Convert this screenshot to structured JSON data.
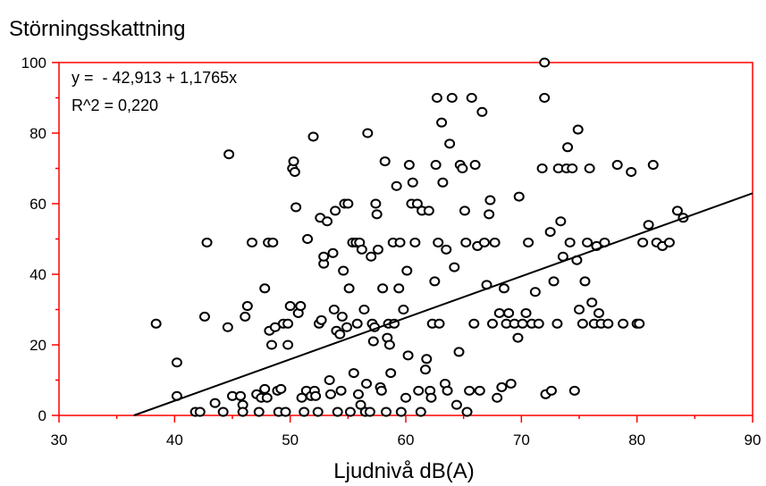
{
  "chart_data": {
    "type": "scatter",
    "title": "Störningsskattning",
    "xlabel": "Ljudnivå dB(A)",
    "ylabel": "",
    "xlim": [
      30,
      90
    ],
    "ylim": [
      0,
      100
    ],
    "xticks": [
      30,
      40,
      50,
      60,
      70,
      80,
      90
    ],
    "yticks": [
      0,
      20,
      40,
      60,
      80,
      100
    ],
    "xtick_labels": [
      "30",
      "40",
      "50",
      "60",
      "70",
      "80",
      "90"
    ],
    "ytick_labels": [
      "0",
      "20",
      "40",
      "60",
      "80",
      "100"
    ],
    "grid": false,
    "frame_color": "#ff0000",
    "marker_color": "#000000",
    "regression": {
      "intercept": -42.913,
      "slope": 1.1765,
      "equation_label": "y =  - 42,913 + 1,1765x",
      "r2_label": "R^2 = 0,220"
    },
    "points": [
      [
        38.4,
        26
      ],
      [
        40.2,
        15
      ],
      [
        40.2,
        5.5
      ],
      [
        41.8,
        1
      ],
      [
        42.2,
        1
      ],
      [
        42.6,
        28
      ],
      [
        42.8,
        49
      ],
      [
        43.5,
        3.5
      ],
      [
        44.2,
        1
      ],
      [
        44.6,
        25
      ],
      [
        44.7,
        74
      ],
      [
        45,
        5.5
      ],
      [
        45.7,
        5.5
      ],
      [
        45.9,
        3
      ],
      [
        45.9,
        1
      ],
      [
        46.1,
        28
      ],
      [
        46.3,
        31
      ],
      [
        46.7,
        49
      ],
      [
        47.1,
        6
      ],
      [
        47.3,
        1
      ],
      [
        47.5,
        5
      ],
      [
        47.8,
        7.5
      ],
      [
        47.8,
        36
      ],
      [
        48,
        5
      ],
      [
        48.1,
        49
      ],
      [
        48.2,
        24
      ],
      [
        48.4,
        20
      ],
      [
        48.5,
        49
      ],
      [
        48.7,
        25
      ],
      [
        48.9,
        7
      ],
      [
        49,
        1
      ],
      [
        49.2,
        7.5
      ],
      [
        49.4,
        26
      ],
      [
        49.6,
        1
      ],
      [
        49.8,
        26
      ],
      [
        49.8,
        20
      ],
      [
        50,
        31
      ],
      [
        50.2,
        70
      ],
      [
        50.3,
        72
      ],
      [
        50.4,
        69
      ],
      [
        50.5,
        59
      ],
      [
        50.7,
        29
      ],
      [
        50.9,
        31
      ],
      [
        51,
        5
      ],
      [
        51.2,
        1
      ],
      [
        51.4,
        7
      ],
      [
        51.5,
        50
      ],
      [
        51.8,
        5.5
      ],
      [
        52,
        79
      ],
      [
        52.1,
        7
      ],
      [
        52.2,
        5.5
      ],
      [
        52.4,
        1
      ],
      [
        52.5,
        26
      ],
      [
        52.6,
        56
      ],
      [
        52.7,
        27
      ],
      [
        52.9,
        43
      ],
      [
        52.9,
        45
      ],
      [
        53.2,
        55
      ],
      [
        53.4,
        10
      ],
      [
        53.5,
        6
      ],
      [
        53.7,
        46
      ],
      [
        53.8,
        30
      ],
      [
        53.9,
        58
      ],
      [
        54,
        24
      ],
      [
        54.1,
        1
      ],
      [
        54.3,
        23
      ],
      [
        54.4,
        7
      ],
      [
        54.5,
        28
      ],
      [
        54.6,
        41
      ],
      [
        54.7,
        60
      ],
      [
        54.9,
        25
      ],
      [
        55,
        60
      ],
      [
        55.1,
        36
      ],
      [
        55.2,
        1
      ],
      [
        55.4,
        49
      ],
      [
        55.5,
        12
      ],
      [
        55.7,
        49
      ],
      [
        55.8,
        26
      ],
      [
        55.9,
        6
      ],
      [
        56,
        49
      ],
      [
        56.1,
        3
      ],
      [
        56.2,
        47
      ],
      [
        56.4,
        30
      ],
      [
        56.5,
        1
      ],
      [
        56.6,
        9
      ],
      [
        56.7,
        80
      ],
      [
        56.9,
        1
      ],
      [
        57,
        45
      ],
      [
        57.1,
        26
      ],
      [
        57.2,
        21
      ],
      [
        57.3,
        25
      ],
      [
        57.4,
        60
      ],
      [
        57.5,
        57
      ],
      [
        57.6,
        47
      ],
      [
        57.8,
        8
      ],
      [
        57.9,
        7
      ],
      [
        58,
        36
      ],
      [
        58.2,
        72
      ],
      [
        58.3,
        1
      ],
      [
        58.4,
        22
      ],
      [
        58.5,
        26
      ],
      [
        58.6,
        20
      ],
      [
        58.7,
        12
      ],
      [
        58.9,
        49
      ],
      [
        59,
        26
      ],
      [
        59.2,
        65
      ],
      [
        59.4,
        36
      ],
      [
        59.5,
        49
      ],
      [
        59.6,
        1
      ],
      [
        59.8,
        30
      ],
      [
        60,
        5
      ],
      [
        60.1,
        41
      ],
      [
        60.2,
        17
      ],
      [
        60.3,
        71
      ],
      [
        60.5,
        60
      ],
      [
        60.6,
        66
      ],
      [
        60.8,
        49
      ],
      [
        61,
        60
      ],
      [
        61.1,
        7
      ],
      [
        61.3,
        1
      ],
      [
        61.4,
        58
      ],
      [
        61.7,
        13
      ],
      [
        61.8,
        16
      ],
      [
        62,
        58
      ],
      [
        62.1,
        7
      ],
      [
        62.2,
        5
      ],
      [
        62.3,
        26
      ],
      [
        62.5,
        38
      ],
      [
        62.6,
        71
      ],
      [
        62.7,
        90
      ],
      [
        62.8,
        49
      ],
      [
        62.9,
        26
      ],
      [
        63.1,
        83
      ],
      [
        63.2,
        66
      ],
      [
        63.4,
        9
      ],
      [
        63.5,
        47
      ],
      [
        63.6,
        7
      ],
      [
        63.8,
        77
      ],
      [
        64,
        90
      ],
      [
        64.2,
        42
      ],
      [
        64.4,
        3
      ],
      [
        64.6,
        18
      ],
      [
        64.7,
        71
      ],
      [
        64.9,
        70
      ],
      [
        65.1,
        58
      ],
      [
        65.2,
        49
      ],
      [
        65.3,
        1
      ],
      [
        65.5,
        7
      ],
      [
        65.7,
        90
      ],
      [
        65.9,
        26
      ],
      [
        66,
        71
      ],
      [
        66.2,
        48
      ],
      [
        66.4,
        7
      ],
      [
        66.6,
        86
      ],
      [
        66.8,
        49
      ],
      [
        67,
        37
      ],
      [
        67.2,
        57
      ],
      [
        67.3,
        61
      ],
      [
        67.5,
        26
      ],
      [
        67.7,
        49
      ],
      [
        67.9,
        5
      ],
      [
        68.1,
        29
      ],
      [
        68.3,
        8
      ],
      [
        68.5,
        36
      ],
      [
        68.7,
        26
      ],
      [
        68.9,
        29
      ],
      [
        69.1,
        9
      ],
      [
        69.4,
        26
      ],
      [
        69.7,
        22
      ],
      [
        69.8,
        62
      ],
      [
        70.1,
        26
      ],
      [
        70.4,
        29
      ],
      [
        70.6,
        49
      ],
      [
        70.9,
        26
      ],
      [
        71.2,
        35
      ],
      [
        71.5,
        26
      ],
      [
        71.8,
        70
      ],
      [
        72,
        100
      ],
      [
        72,
        90
      ],
      [
        72.1,
        6
      ],
      [
        72.5,
        52
      ],
      [
        72.6,
        7
      ],
      [
        72.8,
        38
      ],
      [
        73.1,
        26
      ],
      [
        73.2,
        70
      ],
      [
        73.4,
        55
      ],
      [
        73.6,
        45
      ],
      [
        73.9,
        70
      ],
      [
        74,
        76
      ],
      [
        74.2,
        49
      ],
      [
        74.4,
        70
      ],
      [
        74.6,
        7
      ],
      [
        74.8,
        44
      ],
      [
        74.9,
        81
      ],
      [
        75,
        30
      ],
      [
        75.3,
        26
      ],
      [
        75.5,
        38
      ],
      [
        75.7,
        49
      ],
      [
        75.9,
        70
      ],
      [
        76.1,
        32
      ],
      [
        76.3,
        26
      ],
      [
        76.5,
        48
      ],
      [
        76.7,
        29
      ],
      [
        76.9,
        26
      ],
      [
        77.2,
        49
      ],
      [
        77.5,
        26
      ],
      [
        78.3,
        71
      ],
      [
        78.8,
        26
      ],
      [
        79.5,
        69
      ],
      [
        80,
        26
      ],
      [
        80.2,
        26
      ],
      [
        80.5,
        49
      ],
      [
        81,
        54
      ],
      [
        81.4,
        71
      ],
      [
        81.7,
        49
      ],
      [
        82.2,
        48
      ],
      [
        82.8,
        49
      ],
      [
        83.5,
        58
      ],
      [
        84.0,
        56
      ]
    ]
  }
}
